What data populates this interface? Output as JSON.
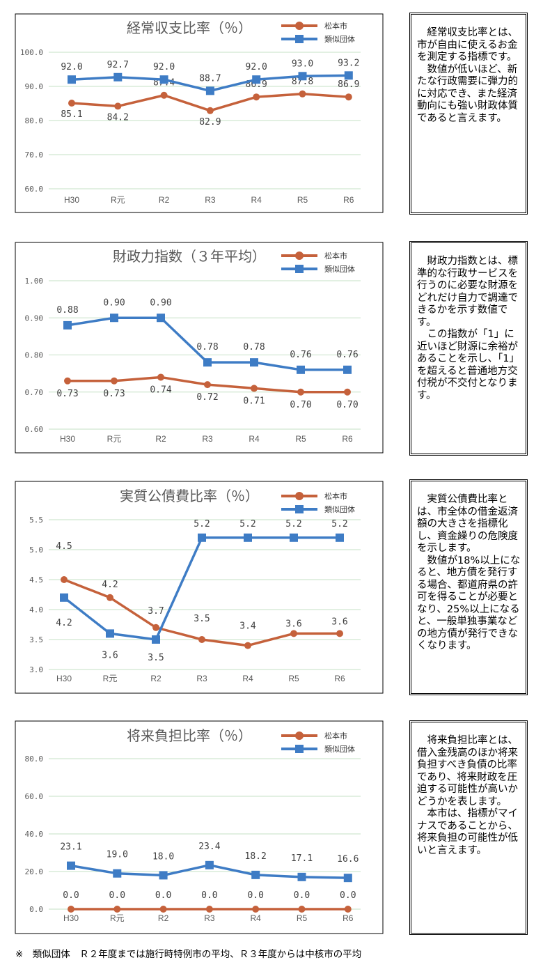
{
  "colors": {
    "series_matsumoto": "#C5613B",
    "series_ruiji": "#3E7CC5",
    "grid": "#C6E0C6",
    "axis_text": "#5A5A5A",
    "title": "#5A5A5A"
  },
  "chart_data": [
    {
      "type": "line",
      "title": "経常収支比率（％）",
      "categories": [
        "H30",
        "R元",
        "R2",
        "R3",
        "R4",
        "R5",
        "R6"
      ],
      "ylim": [
        60,
        100
      ],
      "yticks": [
        "60.0",
        "70.0",
        "80.0",
        "90.0",
        "100.0"
      ],
      "ytick_values": [
        60,
        70,
        80,
        90,
        100
      ],
      "grid": true,
      "legend": "top-right",
      "series": [
        {
          "name": "松本市",
          "marker": "circle",
          "values": [
            85.1,
            84.2,
            87.4,
            82.9,
            86.9,
            87.8,
            86.9
          ],
          "labels": [
            "85.1",
            "84.2",
            "87.4",
            "82.9",
            "86.9",
            "87.8",
            "86.9"
          ]
        },
        {
          "name": "類似団体",
          "marker": "square",
          "values": [
            92.0,
            92.7,
            92.0,
            88.7,
            92.0,
            93.0,
            93.2
          ],
          "labels": [
            "92.0",
            "92.7",
            "92.0",
            "88.7",
            "92.0",
            "93.0",
            "93.2"
          ]
        }
      ]
    },
    {
      "type": "line",
      "title": "財政力指数（３年平均）",
      "categories": [
        "H30",
        "R元",
        "R2",
        "R3",
        "R4",
        "R5",
        "R6"
      ],
      "ylim": [
        0.6,
        1.0
      ],
      "yticks": [
        "0.60",
        "0.70",
        "0.80",
        "0.90",
        "1.00"
      ],
      "ytick_values": [
        0.6,
        0.7,
        0.8,
        0.9,
        1.0
      ],
      "grid": true,
      "legend": "top-right",
      "series": [
        {
          "name": "松本市",
          "marker": "circle",
          "values": [
            0.73,
            0.73,
            0.74,
            0.72,
            0.71,
            0.7,
            0.7
          ],
          "labels": [
            "0.73",
            "0.73",
            "0.74",
            "0.72",
            "0.71",
            "0.70",
            "0.70"
          ]
        },
        {
          "name": "類似団体",
          "marker": "square",
          "values": [
            0.88,
            0.9,
            0.9,
            0.78,
            0.78,
            0.76,
            0.76
          ],
          "labels": [
            "0.88",
            "0.90",
            "0.90",
            "0.78",
            "0.78",
            "0.76",
            "0.76"
          ]
        }
      ]
    },
    {
      "type": "line",
      "title": "実質公債費比率（％）",
      "categories": [
        "H30",
        "R元",
        "R2",
        "R3",
        "R4",
        "R5",
        "R6"
      ],
      "ylim": [
        3.0,
        5.5
      ],
      "yticks": [
        "3.0",
        "3.5",
        "4.0",
        "4.5",
        "5.0",
        "5.5"
      ],
      "ytick_values": [
        3.0,
        3.5,
        4.0,
        4.5,
        5.0,
        5.5
      ],
      "grid": true,
      "legend": "top-right",
      "series": [
        {
          "name": "松本市",
          "marker": "circle",
          "values": [
            4.5,
            4.2,
            3.7,
            3.5,
            3.4,
            3.6,
            3.6
          ],
          "labels": [
            "4.5",
            "4.2",
            "3.7",
            "3.5",
            "3.4",
            "3.6",
            "3.6"
          ]
        },
        {
          "name": "類似団体",
          "marker": "square",
          "values": [
            4.2,
            3.6,
            3.5,
            5.2,
            5.2,
            5.2,
            5.2
          ],
          "labels": [
            "4.2",
            "3.6",
            "3.5",
            "5.2",
            "5.2",
            "5.2",
            "5.2"
          ]
        }
      ]
    },
    {
      "type": "line",
      "title": "将来負担比率（％）",
      "categories": [
        "H30",
        "R元",
        "R2",
        "R3",
        "R4",
        "R5",
        "R6"
      ],
      "ylim": [
        0,
        80
      ],
      "yticks": [
        "0.0",
        "20.0",
        "40.0",
        "60.0",
        "80.0"
      ],
      "ytick_values": [
        0,
        20,
        40,
        60,
        80
      ],
      "grid": true,
      "legend": "top-right",
      "series": [
        {
          "name": "松本市",
          "marker": "circle",
          "values": [
            0.0,
            0.0,
            0.0,
            0.0,
            0.0,
            0.0,
            0.0
          ],
          "labels": [
            "0.0",
            "0.0",
            "0.0",
            "0.0",
            "0.0",
            "0.0",
            "0.0"
          ]
        },
        {
          "name": "類似団体",
          "marker": "square",
          "values": [
            23.1,
            19.0,
            18.0,
            23.4,
            18.2,
            17.1,
            16.6
          ],
          "labels": [
            "23.1",
            "19.0",
            "18.0",
            "23.4",
            "18.2",
            "17.1",
            "16.6"
          ]
        }
      ]
    }
  ],
  "descriptions": [
    {
      "paragraphs": [
        "経常収支比率とは、市が自由に使えるお金を測定する指標です。",
        "数値が低いほど、新たな行政需要に弾力的に対応でき、また経済動向にも強い財政体質であると言えます。"
      ]
    },
    {
      "paragraphs": [
        "財政力指数とは、標準的な行政サービスを行うのに必要な財源をどれだけ自力で調達できるかを示す数値です。",
        "この指数が「1」に近いほど財源に余裕があることを示し、「1」を超えると普通地方交付税が不交付となります。"
      ]
    },
    {
      "paragraphs": [
        "実質公債費比率とは、市全体の借金返済額の大きさを指標化し、資金繰りの危険度を示します。",
        "数値が18%以上になると、地方債を発行する場合、都道府県の許可を得ることが必要となり、25%以上になると、一般単独事業などの地方債が発行できなくなります。"
      ]
    },
    {
      "paragraphs": [
        "将来負担比率とは、借入金残高のほか将来負担すべき負債の比率であり、将来財政を圧迫する可能性が高いかどうかを表します。",
        "本市は、指標がマイナスであることから、将来負担の可能性が低いと言えます。"
      ]
    }
  ],
  "footnote": "※　類似団体　Ｒ２年度までは施行時特例市の平均、Ｒ３年度からは中核市の平均"
}
